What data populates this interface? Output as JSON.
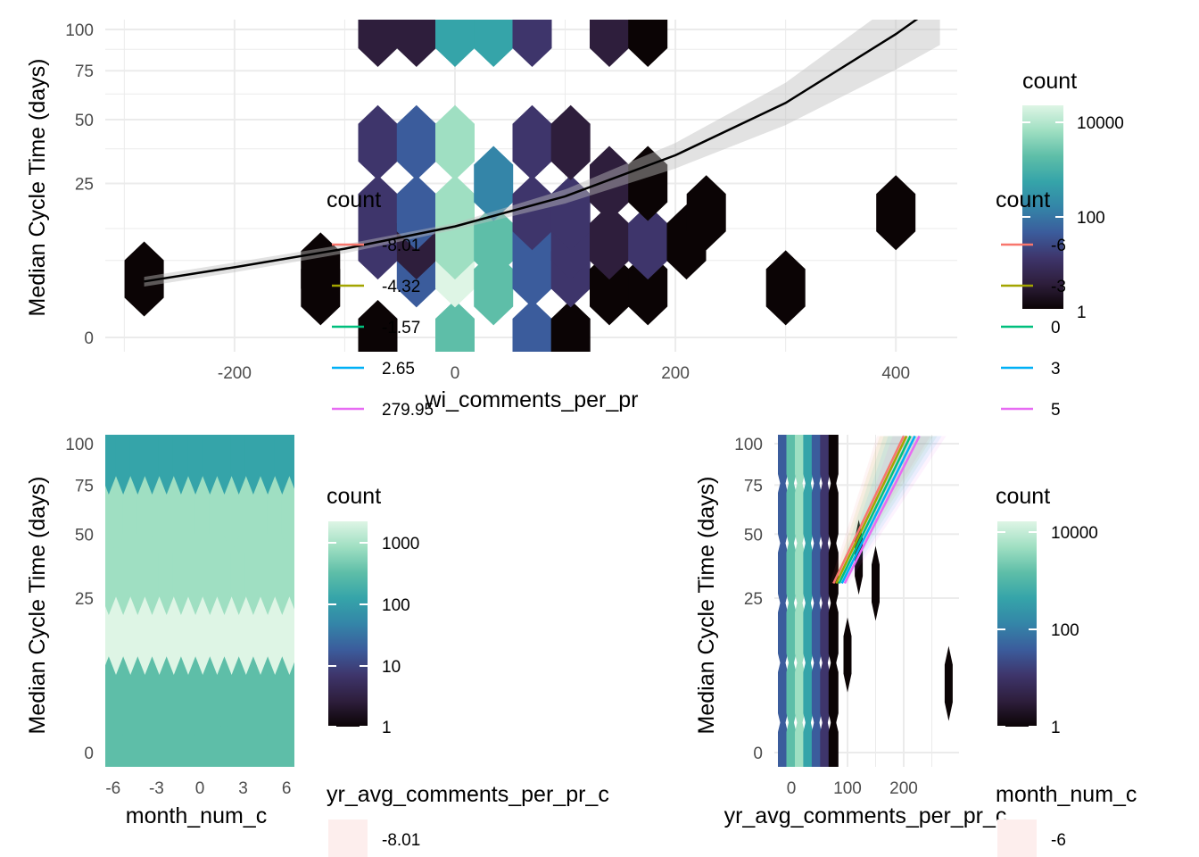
{
  "colors": {
    "scale": [
      "#0b0405",
      "#2e1e3c",
      "#3e356b",
      "#3b5c9c",
      "#3485a8",
      "#35a4a9",
      "#5ebea8",
      "#9fdfc2",
      "#def5e5"
    ],
    "smooth": "#000000",
    "ribbon": "#bfbfbf",
    "grid": "#ebebeb",
    "series": [
      "#f8766d",
      "#a3a500",
      "#00bf7d",
      "#00b0f6",
      "#e76bf3"
    ]
  },
  "chart_data": [
    {
      "id": "top",
      "type": "heatmap",
      "subtype": "hexbin",
      "xlabel": "wi_comments_per_pr",
      "ylabel": "Median Cycle Time (days)",
      "xticks": [
        -200,
        0,
        200,
        400
      ],
      "yticks": [
        0,
        25,
        50,
        75,
        100
      ],
      "ytick_labels": [
        "0",
        "25",
        "50",
        "75",
        "100"
      ],
      "xlim": [
        -300,
        460
      ],
      "color_scale": "log10",
      "hexes": [
        {
          "x": -282,
          "y": 3.6,
          "level": 0
        },
        {
          "x": -122,
          "y": 4.8,
          "level": 0
        },
        {
          "x": -122,
          "y": 2.6,
          "level": 0
        },
        {
          "x": -70,
          "y": 0,
          "level": 0
        },
        {
          "x": -70,
          "y": 9.6,
          "level": 2
        },
        {
          "x": -70,
          "y": 16.4,
          "level": 2
        },
        {
          "x": -70,
          "y": 40,
          "level": 2
        },
        {
          "x": -70,
          "y": 100,
          "level": 1
        },
        {
          "x": -35,
          "y": 4.8,
          "level": 3
        },
        {
          "x": -35,
          "y": 9.6,
          "level": 1
        },
        {
          "x": -35,
          "y": 16.4,
          "level": 3
        },
        {
          "x": -35,
          "y": 40,
          "level": 3
        },
        {
          "x": -35,
          "y": 100,
          "level": 1
        },
        {
          "x": 0,
          "y": 0,
          "level": 6
        },
        {
          "x": 0,
          "y": 4.8,
          "level": 8
        },
        {
          "x": 0,
          "y": 9.6,
          "level": 7
        },
        {
          "x": 0,
          "y": 16.4,
          "level": 7
        },
        {
          "x": 0,
          "y": 40,
          "level": 7
        },
        {
          "x": 0,
          "y": 100,
          "level": 5
        },
        {
          "x": 35,
          "y": 2.6,
          "level": 6
        },
        {
          "x": 35,
          "y": 9.6,
          "level": 6
        },
        {
          "x": 35,
          "y": 25,
          "level": 4
        },
        {
          "x": 35,
          "y": 100,
          "level": 5
        },
        {
          "x": 70,
          "y": 0,
          "level": 3
        },
        {
          "x": 70,
          "y": 4.8,
          "level": 3
        },
        {
          "x": 70,
          "y": 9.6,
          "level": 3
        },
        {
          "x": 70,
          "y": 16.4,
          "level": 2
        },
        {
          "x": 70,
          "y": 40,
          "level": 2
        },
        {
          "x": 70,
          "y": 100,
          "level": 2
        },
        {
          "x": 105,
          "y": 0,
          "level": 0
        },
        {
          "x": 105,
          "y": 4.8,
          "level": 2
        },
        {
          "x": 105,
          "y": 9.6,
          "level": 2
        },
        {
          "x": 105,
          "y": 16.4,
          "level": 2
        },
        {
          "x": 105,
          "y": 40,
          "level": 1
        },
        {
          "x": 140,
          "y": 2.6,
          "level": 0
        },
        {
          "x": 140,
          "y": 9.6,
          "level": 1
        },
        {
          "x": 140,
          "y": 25,
          "level": 1
        },
        {
          "x": 140,
          "y": 100,
          "level": 1
        },
        {
          "x": 175,
          "y": 2.6,
          "level": 0
        },
        {
          "x": 175,
          "y": 9.6,
          "level": 2
        },
        {
          "x": 175,
          "y": 25,
          "level": 0
        },
        {
          "x": 175,
          "y": 100,
          "level": 0
        },
        {
          "x": 210,
          "y": 9.6,
          "level": 0
        },
        {
          "x": 228,
          "y": 16.4,
          "level": 0
        },
        {
          "x": 300,
          "y": 2.6,
          "level": 0
        },
        {
          "x": 400,
          "y": 16.4,
          "level": 0
        }
      ],
      "smooth": {
        "x": [
          -282,
          -200,
          -100,
          0,
          100,
          200,
          300,
          400,
          440
        ],
        "y": [
          3.3,
          5.2,
          8.3,
          13,
          21,
          35,
          58,
          97,
          118
        ]
      },
      "legend_count": {
        "title": "count",
        "tick_labels": [
          "10000",
          "100",
          "1"
        ]
      },
      "legend_lines_a": {
        "title": "count",
        "labels": [
          "-8.01",
          "-4.32",
          "-1.57",
          "2.65",
          "279.95"
        ]
      },
      "legend_lines_b": {
        "title": "count",
        "labels": [
          "-6",
          "-3",
          "0",
          "3",
          "5"
        ]
      }
    },
    {
      "id": "bottom-left",
      "type": "heatmap",
      "subtype": "hexbin",
      "xlabel": "month_num_c",
      "ylabel": "Median Cycle Time (days)",
      "xticks": [
        -6,
        -3,
        0,
        3,
        6
      ],
      "yticks": [
        0,
        25,
        50,
        75,
        100
      ],
      "ytick_labels": [
        "0",
        "25",
        "50",
        "75",
        "100"
      ],
      "xlim": [
        -6.4,
        6.3
      ],
      "color_scale": "log10",
      "rows": [
        {
          "y": 0,
          "level": 6
        },
        {
          "y": 9.6,
          "level": 6
        },
        {
          "y": 16.4,
          "level": 8
        },
        {
          "y": 25,
          "level": 7
        },
        {
          "y": 40,
          "level": 7
        },
        {
          "y": 100,
          "level": 5
        }
      ],
      "legend_count": {
        "title": "count",
        "tick_labels": [
          "1000",
          "100",
          "10",
          "1"
        ]
      },
      "legend_fill": {
        "title": "yr_avg_comments_per_pr_c",
        "labels": [
          "-8.01"
        ]
      }
    },
    {
      "id": "bottom-right",
      "type": "heatmap",
      "subtype": "hexbin",
      "xlabel": "yr_avg_comments_per_pr_c",
      "ylabel": "Median Cycle Time (days)",
      "xticks": [
        0,
        100,
        200
      ],
      "yticks": [
        0,
        25,
        50,
        75,
        100
      ],
      "ytick_labels": [
        "0",
        "25",
        "50",
        "75",
        "100"
      ],
      "xlim": [
        -20,
        300
      ],
      "color_scale": "log10",
      "columns": [
        {
          "x": -15,
          "level": 3
        },
        {
          "x": 0,
          "level": 6
        },
        {
          "x": 15,
          "level": 7
        },
        {
          "x": 30,
          "level": 5
        },
        {
          "x": 45,
          "level": 3
        },
        {
          "x": 60,
          "level": 2
        },
        {
          "x": 75,
          "level": 0
        }
      ],
      "outliers": [
        {
          "x": 100,
          "y": 10,
          "level": 0
        },
        {
          "x": 120,
          "y": 40,
          "level": 0
        },
        {
          "x": 150,
          "y": 30,
          "level": 0
        },
        {
          "x": 280,
          "y": 5,
          "level": 0
        }
      ],
      "lines": [
        {
          "x": [
            75,
            200
          ],
          "y": [
            30,
            105
          ]
        },
        {
          "x": [
            80,
            205
          ],
          "y": [
            30,
            105
          ]
        },
        {
          "x": [
            85,
            212
          ],
          "y": [
            30,
            105
          ]
        },
        {
          "x": [
            90,
            220
          ],
          "y": [
            30,
            105
          ]
        },
        {
          "x": [
            95,
            228
          ],
          "y": [
            30,
            105
          ]
        }
      ],
      "legend_count": {
        "title": "count",
        "tick_labels": [
          "10000",
          "100",
          "1"
        ]
      },
      "legend_fill": {
        "title": "month_num_c",
        "labels": [
          "-6"
        ]
      }
    }
  ]
}
